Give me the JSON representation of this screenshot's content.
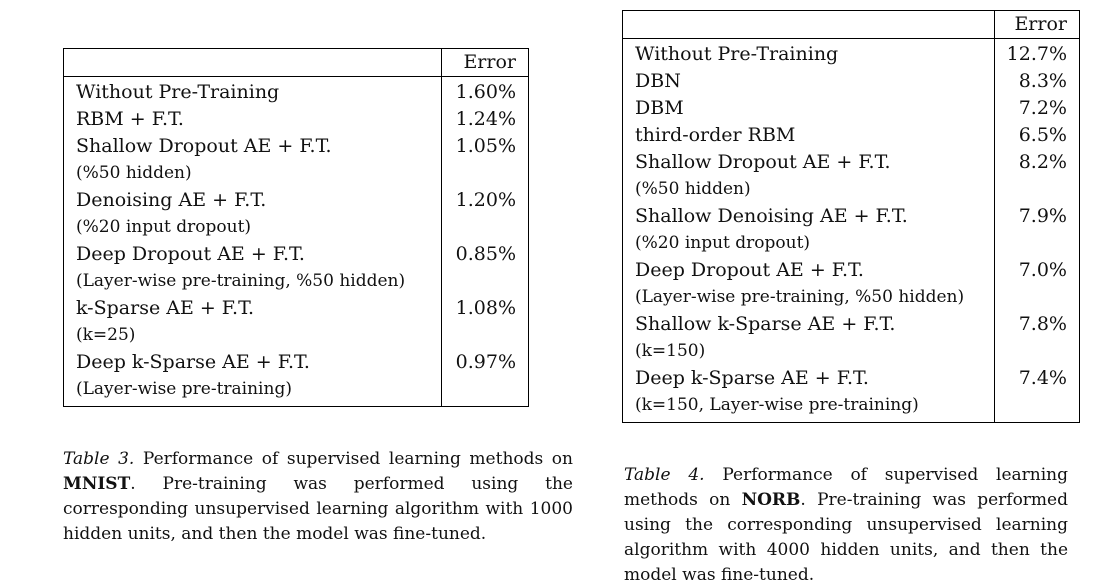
{
  "table3": {
    "header": [
      "",
      "Error"
    ],
    "rows": [
      {
        "method": "Without Pre-Training",
        "sub": "",
        "error": "1.60%"
      },
      {
        "method": "RBM + F.T.",
        "sub": "",
        "error": "1.24%"
      },
      {
        "method": "Shallow Dropout AE + F.T.",
        "sub": "(%50 hidden)",
        "error": "1.05%"
      },
      {
        "method": "Denoising AE + F.T.",
        "sub": "(%20 input dropout)",
        "error": "1.20%"
      },
      {
        "method": "Deep Dropout AE + F.T.",
        "sub": "(Layer-wise pre-training, %50 hidden)",
        "error": "0.85%"
      },
      {
        "method": "k-Sparse AE + F.T.",
        "sub": "(k=25)",
        "error": "1.08%"
      },
      {
        "method": "Deep k-Sparse AE + F.T.",
        "sub": "(Layer-wise pre-training)",
        "error": "0.97%"
      }
    ],
    "caption": {
      "label": "Table 3.",
      "text_before": " Performance of supervised learning methods on ",
      "bold": "MNIST",
      "text_after": ". Pre-training was performed using the corresponding unsupervised learning algorithm with 1000 hidden units, and then the model was fine-tuned."
    }
  },
  "table4": {
    "header": [
      "",
      "Error"
    ],
    "rows": [
      {
        "method": "Without Pre-Training",
        "sub": "",
        "error": "12.7%"
      },
      {
        "method": "DBN",
        "sub": "",
        "error": "8.3%"
      },
      {
        "method": "DBM",
        "sub": "",
        "error": "7.2%"
      },
      {
        "method": "third-order RBM",
        "sub": "",
        "error": "6.5%"
      },
      {
        "method": "Shallow Dropout AE + F.T.",
        "sub": "(%50 hidden)",
        "error": "8.2%"
      },
      {
        "method": "Shallow Denoising AE + F.T.",
        "sub": "(%20 input dropout)",
        "error": "7.9%"
      },
      {
        "method": "Deep Dropout AE + F.T.",
        "sub": "(Layer-wise pre-training, %50 hidden)",
        "error": "7.0%"
      },
      {
        "method": "Shallow k-Sparse AE + F.T.",
        "sub": "(k=150)",
        "error": "7.8%"
      },
      {
        "method": "Deep k-Sparse AE + F.T.",
        "sub": "(k=150, Layer-wise pre-training)",
        "error": "7.4%"
      }
    ],
    "caption": {
      "label": "Table 4.",
      "text_before": " Performance of supervised learning methods on ",
      "bold": "NORB",
      "text_after": ". Pre-training was performed using the corresponding unsupervised learning algorithm with 4000 hidden units, and then the model was fine-tuned."
    }
  }
}
